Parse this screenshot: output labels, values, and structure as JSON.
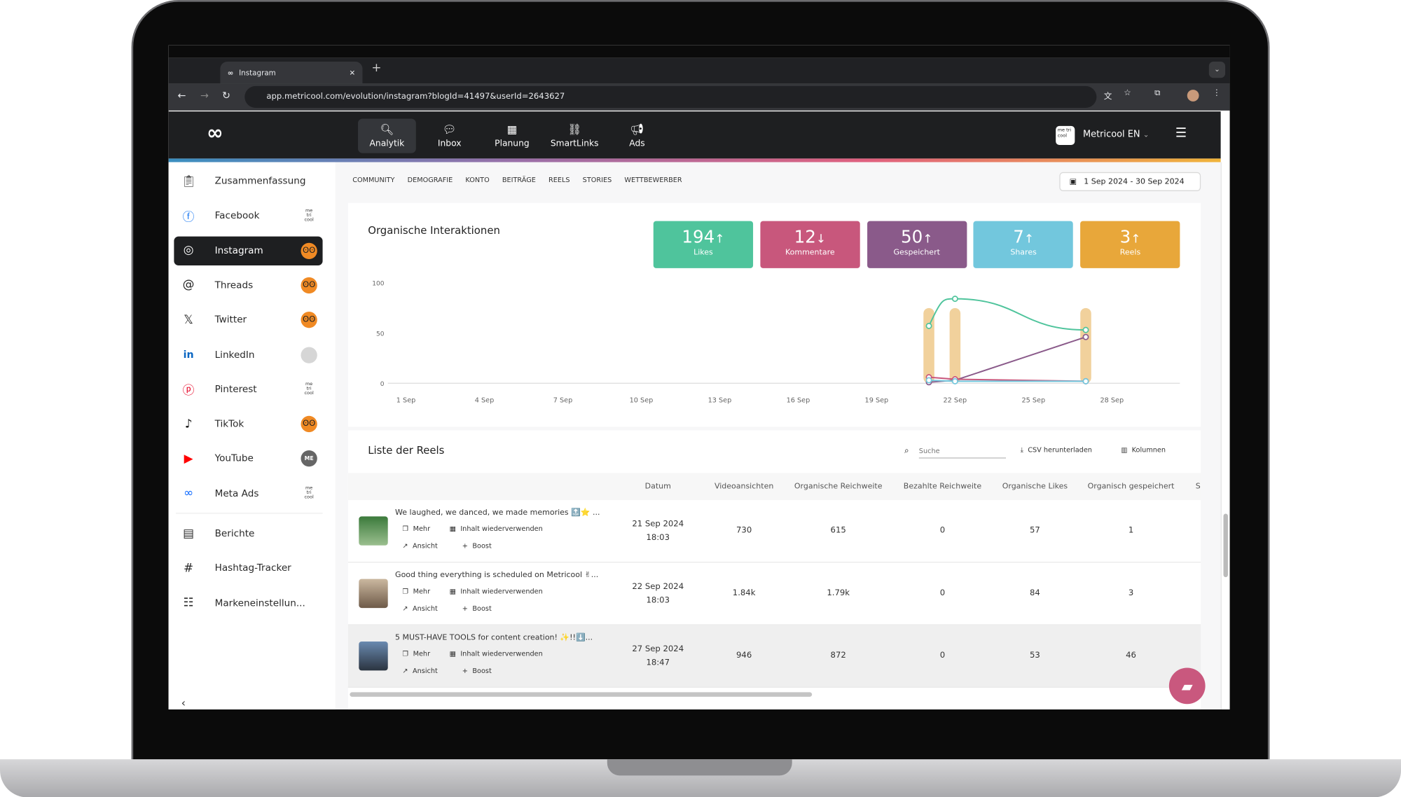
{
  "browser": {
    "tab_title": "Instagram",
    "url": "app.metricool.com/evolution/instagram?blogId=41497&userId=2643627"
  },
  "app": {
    "nav": [
      {
        "label": "Analytik",
        "icon": "search-chart-icon"
      },
      {
        "label": "Inbox",
        "icon": "chat-icon"
      },
      {
        "label": "Planung",
        "icon": "calendar-icon"
      },
      {
        "label": "SmartLinks",
        "icon": "link-icon"
      },
      {
        "label": "Ads",
        "icon": "megaphone-icon"
      }
    ],
    "brand_logo_text": "me tri cool",
    "account": "Metricool EN",
    "colors": {
      "likes": "#4fc49c",
      "comments": "#c8577c",
      "saved": "#8a5a8a",
      "shares": "#72c7dd",
      "reels": "#e8a73a"
    }
  },
  "sidebar": {
    "items": [
      {
        "label": "Zusammenfassung",
        "icon": "clipboard-icon"
      },
      {
        "label": "Facebook",
        "icon": "facebook-icon",
        "avatar": "mc"
      },
      {
        "label": "Instagram",
        "icon": "instagram-icon",
        "avatar": "orange",
        "active": true
      },
      {
        "label": "Threads",
        "icon": "threads-icon",
        "avatar": "orange"
      },
      {
        "label": "Twitter",
        "icon": "x-icon",
        "avatar": "orange"
      },
      {
        "label": "LinkedIn",
        "icon": "linkedin-icon",
        "avatar": "grey"
      },
      {
        "label": "Pinterest",
        "icon": "pinterest-icon",
        "avatar": "mc"
      },
      {
        "label": "TikTok",
        "icon": "tiktok-icon",
        "avatar": "orange"
      },
      {
        "label": "YouTube",
        "icon": "youtube-icon",
        "avatar": "me",
        "avatar_text": "ME"
      },
      {
        "label": "Meta Ads",
        "icon": "meta-icon",
        "avatar": "mc"
      }
    ],
    "tools": [
      {
        "label": "Berichte",
        "icon": "report-icon"
      },
      {
        "label": "Hashtag-Tracker",
        "icon": "hashtag-icon"
      },
      {
        "label": "Markeneinstellun...",
        "icon": "sliders-icon"
      }
    ]
  },
  "subtabs": [
    "COMMUNITY",
    "DEMOGRAFIE",
    "KONTO",
    "BEITRÄGE",
    "REELS",
    "STORIES",
    "WETTBEWERBER"
  ],
  "date_range": "1 Sep 2024 - 30 Sep 2024",
  "interactions": {
    "title": "Organische Interaktionen",
    "kpis": [
      {
        "value": "194",
        "trend": "↑",
        "label": "Likes",
        "color": "#4fc49c"
      },
      {
        "value": "12",
        "trend": "↓",
        "label": "Kommentare",
        "color": "#c8577c"
      },
      {
        "value": "50",
        "trend": "↑",
        "label": "Gespeichert",
        "color": "#8a5a8a"
      },
      {
        "value": "7",
        "trend": "↑",
        "label": "Shares",
        "color": "#72c7dd"
      },
      {
        "value": "3",
        "trend": "↑",
        "label": "Reels",
        "color": "#e8a73a"
      }
    ]
  },
  "chart_data": {
    "type": "line",
    "x_ticks": [
      "1 Sep",
      "4 Sep",
      "7 Sep",
      "10 Sep",
      "13 Sep",
      "16 Sep",
      "19 Sep",
      "22 Sep",
      "25 Sep",
      "28 Sep"
    ],
    "y_ticks": [
      "100",
      "50",
      "0"
    ],
    "ylim": [
      0,
      100
    ],
    "x_days": [
      21,
      22,
      27
    ],
    "series": [
      {
        "key": "likes",
        "values": [
          57,
          84,
          53
        ],
        "color": "#4fc49c"
      },
      {
        "key": "saved",
        "values": [
          1,
          3,
          46
        ],
        "color": "#8a5a8a"
      },
      {
        "key": "comments",
        "values": [
          6,
          4,
          2
        ],
        "color": "#c8577c"
      },
      {
        "key": "shares",
        "values": [
          3,
          2,
          2
        ],
        "color": "#72c7dd"
      }
    ],
    "bars": {
      "key": "reels",
      "values": [
        1,
        1,
        1
      ],
      "color": "#f1d19c"
    },
    "grid": false
  },
  "reels": {
    "title": "Liste der Reels",
    "search_placeholder": "Suche",
    "csv_label": "CSV herunterladen",
    "columns_label": "Kolumnen",
    "headers": [
      "Datum",
      "Videoansichten",
      "Organische Reichweite",
      "Bezahlte Reichweite",
      "Organische Likes",
      "Organisch gespeichert",
      "S"
    ],
    "actions": {
      "more": "Mehr",
      "reuse": "Inhalt wiederverwenden",
      "view": "Ansicht",
      "boost": "Boost"
    },
    "rows": [
      {
        "caption": "We laughed, we danced, we made memories 🔝⭐ ...",
        "date": "21 Sep 2024",
        "time": "18:03",
        "views": "730",
        "reach": "615",
        "paid": "0",
        "likes": "57",
        "saved": "1"
      },
      {
        "caption": "Good thing everything is scheduled on Metricool ✌...",
        "date": "22 Sep 2024",
        "time": "18:03",
        "views": "1.84k",
        "reach": "1.79k",
        "paid": "0",
        "likes": "84",
        "saved": "3"
      },
      {
        "caption": "5 MUST-HAVE TOOLS for content creation! ✨!!⬇️...",
        "date": "27 Sep 2024",
        "time": "18:47",
        "views": "946",
        "reach": "872",
        "paid": "0",
        "likes": "53",
        "saved": "46"
      }
    ]
  }
}
